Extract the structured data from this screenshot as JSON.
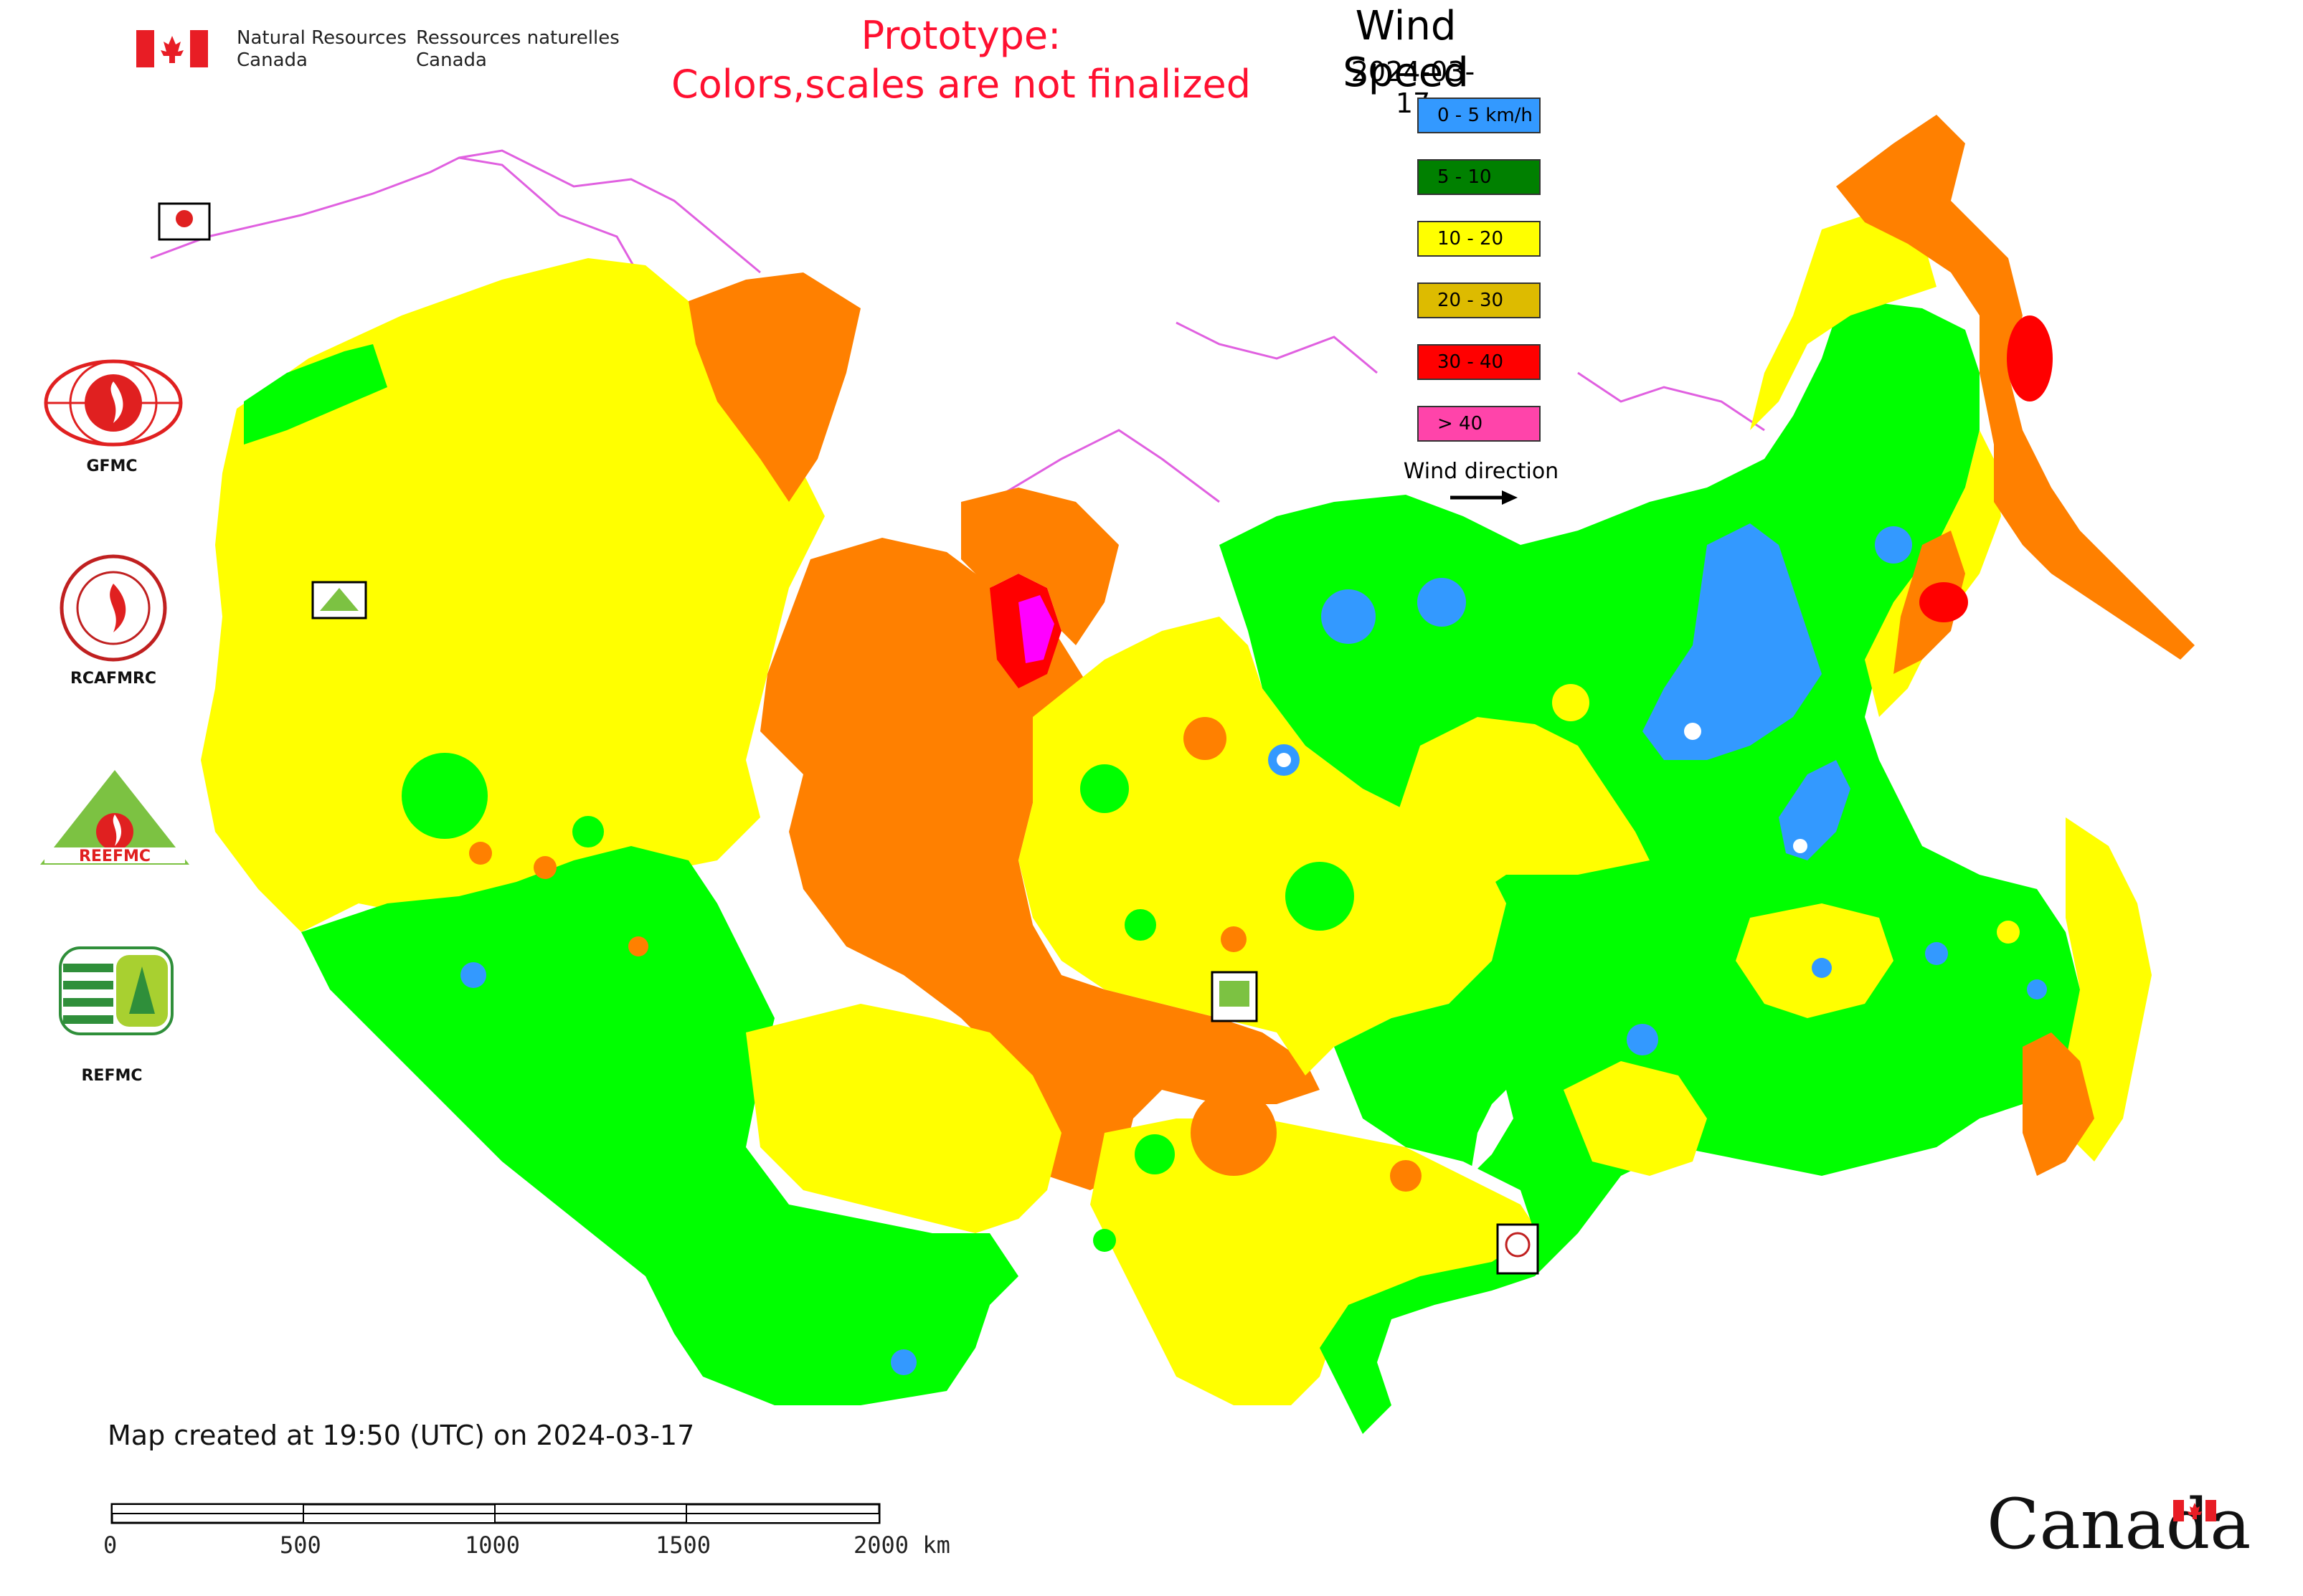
{
  "header": {
    "org_en_line1": "Natural Resources",
    "org_en_line2": "Canada",
    "org_fr_line1": "Ressources naturelles",
    "org_fr_line2": "Canada",
    "prototype_line1": "Prototype:",
    "prototype_line2": "Colors,scales are not finalized"
  },
  "legend": {
    "title": "Wind Speed",
    "date": "2024-03-17",
    "items": [
      {
        "label": "0 - 5 km/h",
        "color": "#3399ff"
      },
      {
        "label": "5 - 10",
        "color": "#008000"
      },
      {
        "label": "10 - 20",
        "color": "#ffff00"
      },
      {
        "label": "20 - 30",
        "color": "#ddbb00"
      },
      {
        "label": "30 - 40",
        "color": "#ff0000"
      },
      {
        "label": "> 40",
        "color": "#ff44aa"
      }
    ],
    "wind_direction_label": "Wind direction"
  },
  "logos": [
    {
      "label": "GFMC"
    },
    {
      "label": "RCAFMRC"
    },
    {
      "label": "REEFMC"
    },
    {
      "label": "REFMC"
    }
  ],
  "map": {
    "colors": {
      "green": "#00ff00",
      "yellow": "#ffff00",
      "orange": "#ff8000",
      "blue": "#3399ff",
      "red": "#ff0000",
      "magenta": "#ff00ff",
      "border": "#e060e0"
    }
  },
  "footer": {
    "created": "Map created at 19:50 (UTC) on 2024-03-17",
    "scale_ticks": [
      "0",
      "500",
      "1000",
      "1500",
      "2000 km"
    ],
    "wordmark": "Canada"
  }
}
